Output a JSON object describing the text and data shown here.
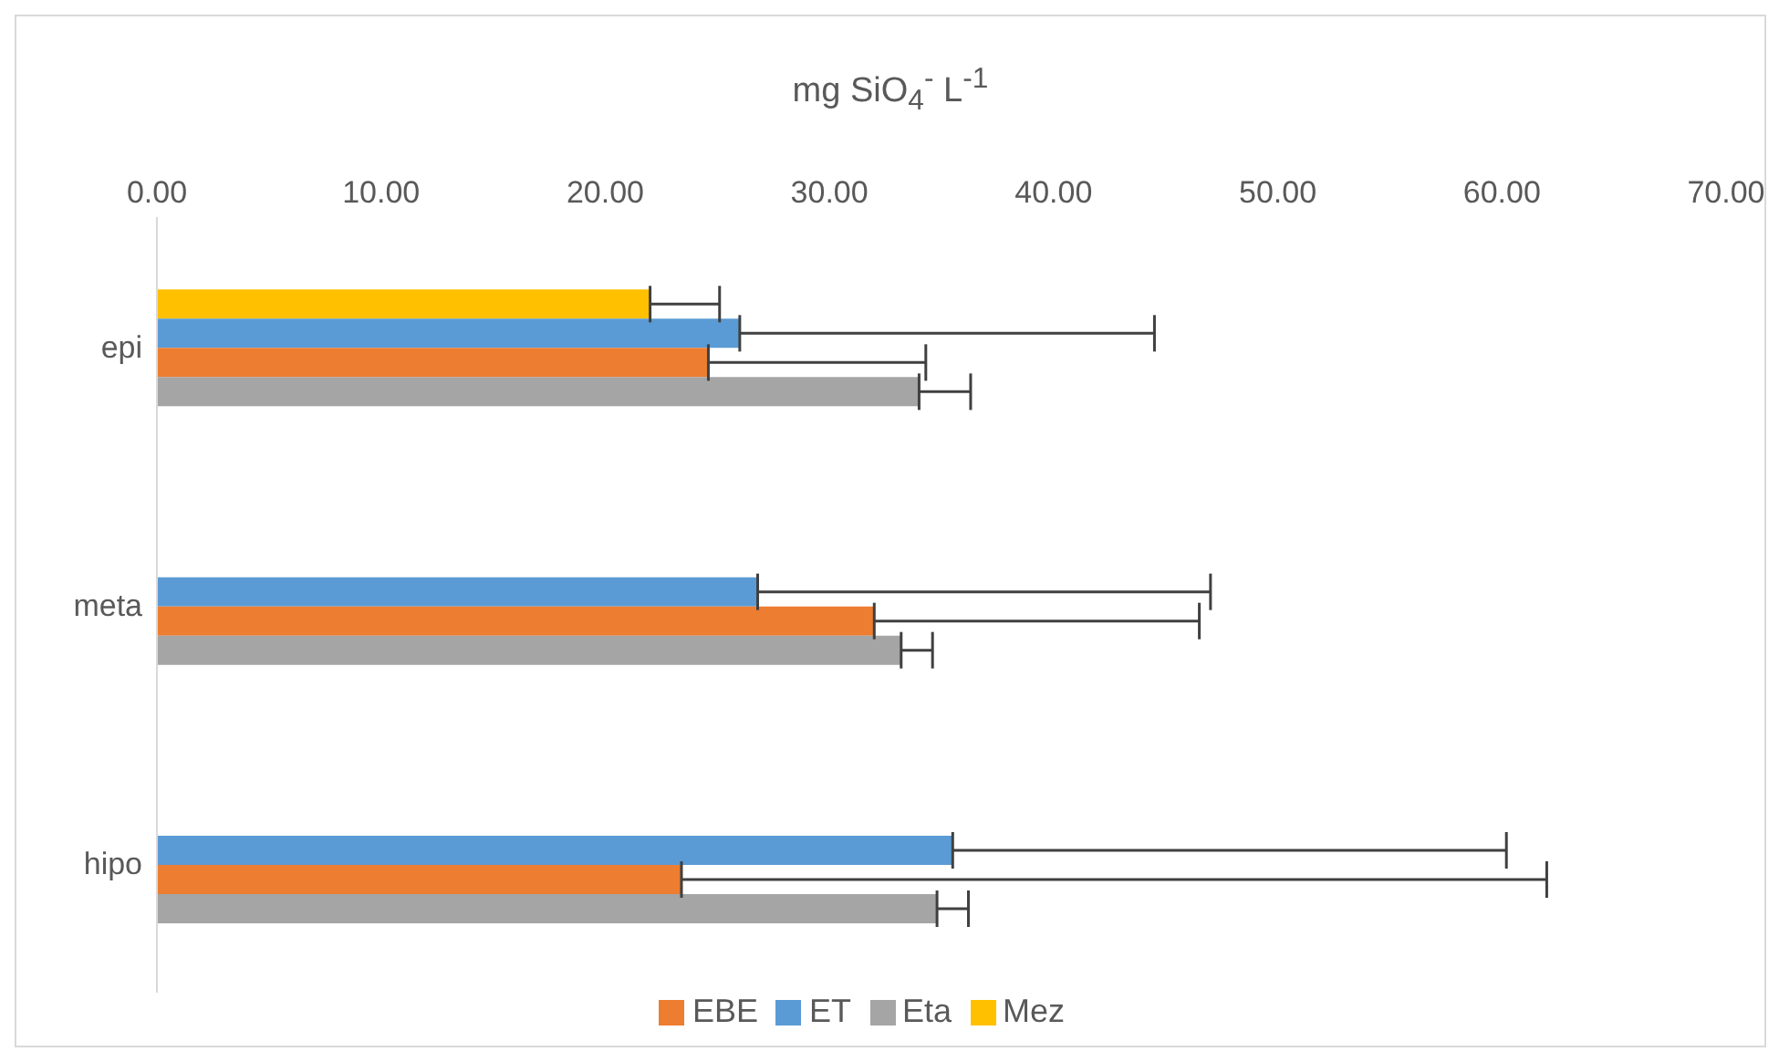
{
  "chart_data": {
    "type": "bar",
    "orientation": "horizontal",
    "xlabel": "mg SiO$_{4}$$^{-}$ L$^{-1}$",
    "categories": [
      "epi",
      "meta",
      "hipo"
    ],
    "series": [
      {
        "name": "Mez",
        "color": "#ffc000",
        "values": [
          22.0,
          null,
          null
        ],
        "errors": [
          [
            22.0,
            25.1
          ],
          null,
          null
        ]
      },
      {
        "name": "ET",
        "color": "#5b9bd5",
        "values": [
          26.0,
          26.8,
          35.5
        ],
        "errors": [
          [
            26.0,
            44.5
          ],
          [
            26.8,
            47.0
          ],
          [
            35.5,
            60.2
          ]
        ]
      },
      {
        "name": "EBE",
        "color": "#ed7d31",
        "values": [
          24.6,
          32.0,
          23.4
        ],
        "errors": [
          [
            24.6,
            34.3
          ],
          [
            32.0,
            46.5
          ],
          [
            23.4,
            62.0
          ]
        ]
      },
      {
        "name": "Eta",
        "color": "#a5a5a5",
        "values": [
          34.0,
          33.2,
          34.8
        ],
        "errors": [
          [
            34.0,
            36.3
          ],
          [
            33.2,
            34.6
          ],
          [
            34.8,
            36.2
          ]
        ]
      }
    ],
    "xlim": [
      0,
      70
    ],
    "xticks": [
      {
        "value": 0,
        "label": "0.00"
      },
      {
        "value": 10,
        "label": "10.00"
      },
      {
        "value": 20,
        "label": "20.00"
      },
      {
        "value": 30,
        "label": "30.00"
      },
      {
        "value": 40,
        "label": "40.00"
      },
      {
        "value": 50,
        "label": "50.00"
      },
      {
        "value": 60,
        "label": "60.00"
      },
      {
        "value": 70,
        "label": "70.00"
      }
    ],
    "grid": false,
    "legend": "bottom"
  }
}
